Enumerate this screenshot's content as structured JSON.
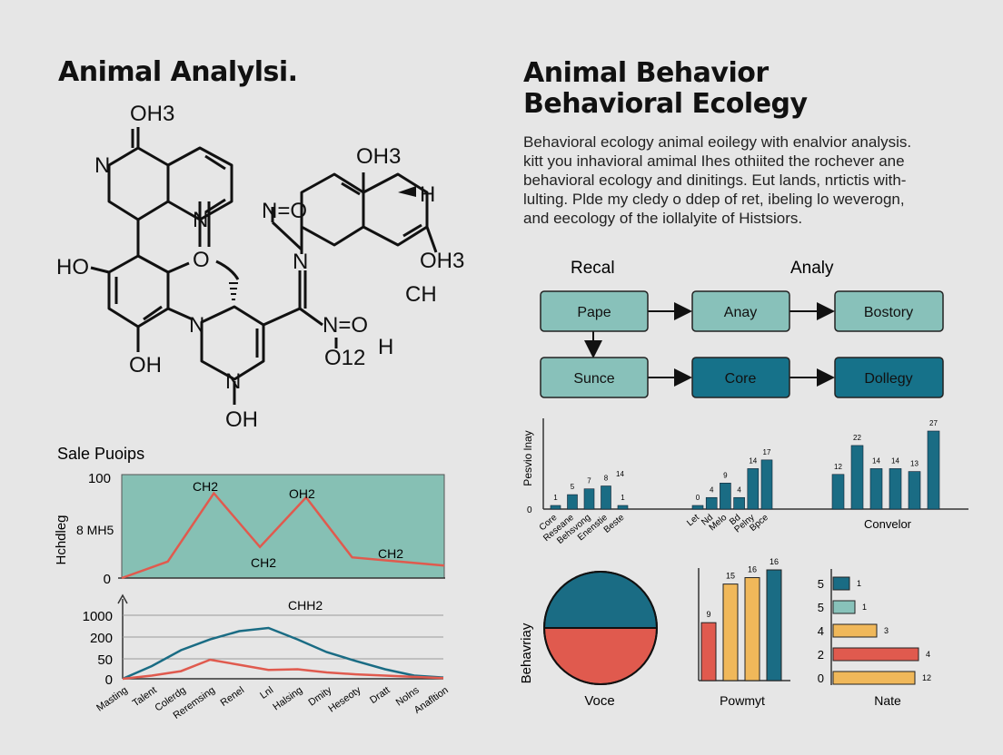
{
  "left": {
    "title": "Animal Analylsi.",
    "molecule_labels": [
      "OH3",
      "N",
      "N",
      "N=O",
      "OH3",
      "H",
      "HO",
      "O",
      "N",
      "N",
      "N=O",
      "OH3",
      "CH",
      "OH",
      "O12",
      "H",
      "N",
      "OH"
    ]
  },
  "right": {
    "title_line1": "Animal Behavior",
    "title_line2": "Behavioral Ecolegy",
    "paragraph": [
      "Behavioral ecology animal eoilegy with enalvior analysis.",
      "kitt you inhavioral amimal Ihes othiited the rochever ane",
      "behavioral ecology and dinitings. Eut lands, nrtictis with-",
      "lulting. Plde my cledy o ddep of ret, ibeling lo weverogn,",
      "and eecology of the iollalyite of Histsiors."
    ]
  },
  "flow": {
    "col_label_1": "Recal",
    "col_label_2": "Analy",
    "boxes": [
      "Pape",
      "Anay",
      "Bostory",
      "Sunce",
      "Core",
      "Dollegy"
    ],
    "light_color": "#88c1ba",
    "dark_color": "#16728a"
  },
  "colors": {
    "teal": "#1a6c84",
    "red": "#e05a4e",
    "yellow": "#f0b85a",
    "green_bg": "#86c0b4",
    "light_teal": "#88c2ba"
  },
  "chart_data": [
    {
      "type": "line",
      "title": "Sale Puoips",
      "ylabel": "Hchdleg",
      "y_inner_label": "8 MH5",
      "yticks": [
        "100",
        "0"
      ],
      "ylim": [
        0,
        100
      ],
      "x": [
        0,
        1,
        2,
        3,
        4,
        5,
        6,
        7
      ],
      "series": [
        {
          "values": [
            0,
            16,
            82,
            30,
            78,
            20,
            16,
            12
          ]
        }
      ],
      "annotations": [
        "CH2",
        "OH2",
        "CH2",
        "CH2"
      ]
    },
    {
      "type": "line",
      "yticks": [
        "1000",
        "200",
        "50",
        "0"
      ],
      "categories": [
        "Masting",
        "Talent",
        "Colerdg",
        "Reremsing",
        "Renel",
        "Lnl",
        "Halsing",
        "Dmity",
        "Heseoty",
        "Dratt",
        "Nolns",
        "Anafltion"
      ],
      "series": [
        {
          "color": "#1a6c84",
          "values": [
            0,
            20,
            45,
            62,
            75,
            80,
            62,
            42,
            28,
            15,
            5,
            2
          ]
        },
        {
          "color": "#e05a4e",
          "values": [
            0,
            5,
            12,
            30,
            22,
            14,
            15,
            10,
            7,
            5,
            3,
            1
          ]
        }
      ],
      "annotations": [
        "CHH2"
      ]
    },
    {
      "type": "bar",
      "ylabel": "Pesvio lnay",
      "ytick": "0",
      "groups": [
        {
          "categories": [
            "Core",
            "Reseane",
            "Behsvong",
            "Enenstie",
            "Beste"
          ],
          "values": [
            1,
            5,
            7,
            8,
            1
          ],
          "labels": [
            "1",
            "5",
            "7",
            "8",
            "1"
          ],
          "extra": "14"
        },
        {
          "categories": [
            "Let",
            "Nd",
            "Melo",
            "Bd",
            "Pelny",
            "Bpce"
          ],
          "values": [
            0,
            4,
            9,
            4,
            14,
            17
          ],
          "labels": [
            "0",
            "4",
            "9",
            "4",
            "14",
            "17"
          ]
        },
        {
          "name": "Convelor",
          "values": [
            12,
            22,
            14,
            14,
            13,
            27
          ],
          "labels": [
            "12",
            "22",
            "14",
            "14",
            "13",
            "27"
          ]
        }
      ]
    },
    {
      "type": "pie",
      "ylabel": "Behavriay",
      "xlabel": "Voce",
      "values": [
        50,
        50
      ],
      "colors": [
        "#1a6c84",
        "#e05a4e"
      ]
    },
    {
      "type": "bar",
      "xlabel": "Powmyt",
      "values": [
        9,
        15,
        16,
        16
      ],
      "labels": [
        "9",
        "15",
        "16",
        "16"
      ],
      "colors": [
        "#e05a4e",
        "#f0b85a",
        "#f0b85a",
        "#1a6c84"
      ]
    },
    {
      "type": "bar",
      "orientation": "horizontal",
      "xlabel": "Nate",
      "categories": [
        "5",
        "5",
        "4",
        "2",
        "0"
      ],
      "values": [
        1,
        1,
        3,
        4,
        12
      ],
      "labels": [
        "1",
        "1",
        "3",
        "4",
        "12"
      ],
      "colors": [
        "#1a6c84",
        "#88c2ba",
        "#f0b85a",
        "#e05a4e",
        "#f0b85a"
      ]
    }
  ]
}
